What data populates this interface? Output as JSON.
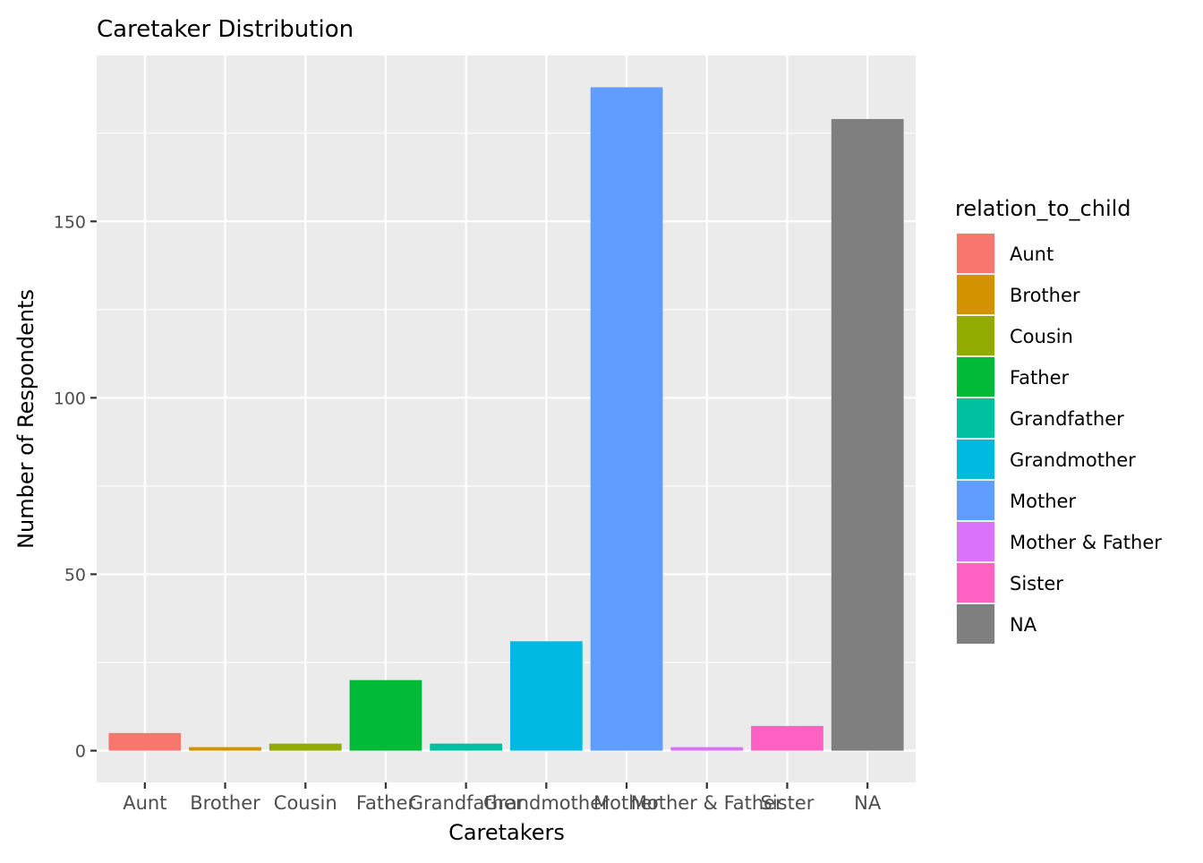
{
  "chart_data": {
    "type": "bar",
    "title": "Caretaker Distribution",
    "xlabel": "Caretakers",
    "ylabel": "Number of Respondents",
    "categories": [
      "Aunt",
      "Brother",
      "Cousin",
      "Father",
      "Grandfather",
      "Grandmother",
      "Mother",
      "Mother & Father",
      "Sister",
      "NA"
    ],
    "values": [
      5,
      1,
      2,
      20,
      2,
      31,
      188,
      1,
      7,
      179
    ],
    "ylim": [
      -9,
      197
    ],
    "yticks": [
      0,
      50,
      100,
      150
    ],
    "grid": true,
    "legend": {
      "title": "relation_to_child",
      "placement": "right",
      "entries": [
        "Aunt",
        "Brother",
        "Cousin",
        "Father",
        "Grandfather",
        "Grandmother",
        "Mother",
        "Mother & Father",
        "Sister",
        "NA"
      ]
    },
    "colors": [
      "#F8766D",
      "#D39200",
      "#93AA00",
      "#00BA38",
      "#00C19F",
      "#00B9E3",
      "#619CFF",
      "#DB72FB",
      "#FF61C3",
      "#7F7F7F"
    ]
  }
}
